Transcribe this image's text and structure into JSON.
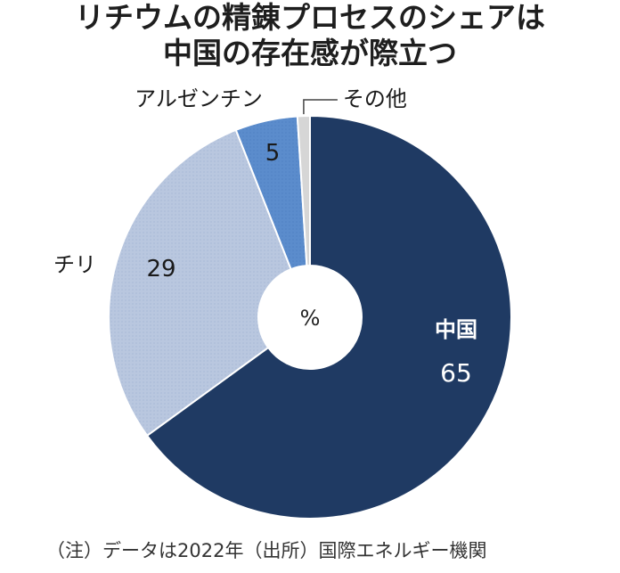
{
  "title": {
    "line1": "リチウムの精錬プロセスのシェアは",
    "line2": "中国の存在感が際立つ"
  },
  "chart_data": {
    "type": "pie",
    "unit": "%",
    "categories": [
      "中国",
      "チリ",
      "アルゼンチン",
      "その他"
    ],
    "values": [
      65,
      29,
      5,
      1
    ],
    "value_labels": [
      "65",
      "29",
      "5",
      ""
    ],
    "colors": [
      "#1f3a63",
      "#b9c7df",
      "#5b8ccc",
      "#d6d6d6"
    ]
  },
  "footnote": "（注）データは2022年（出所）国際エネルギー機関"
}
